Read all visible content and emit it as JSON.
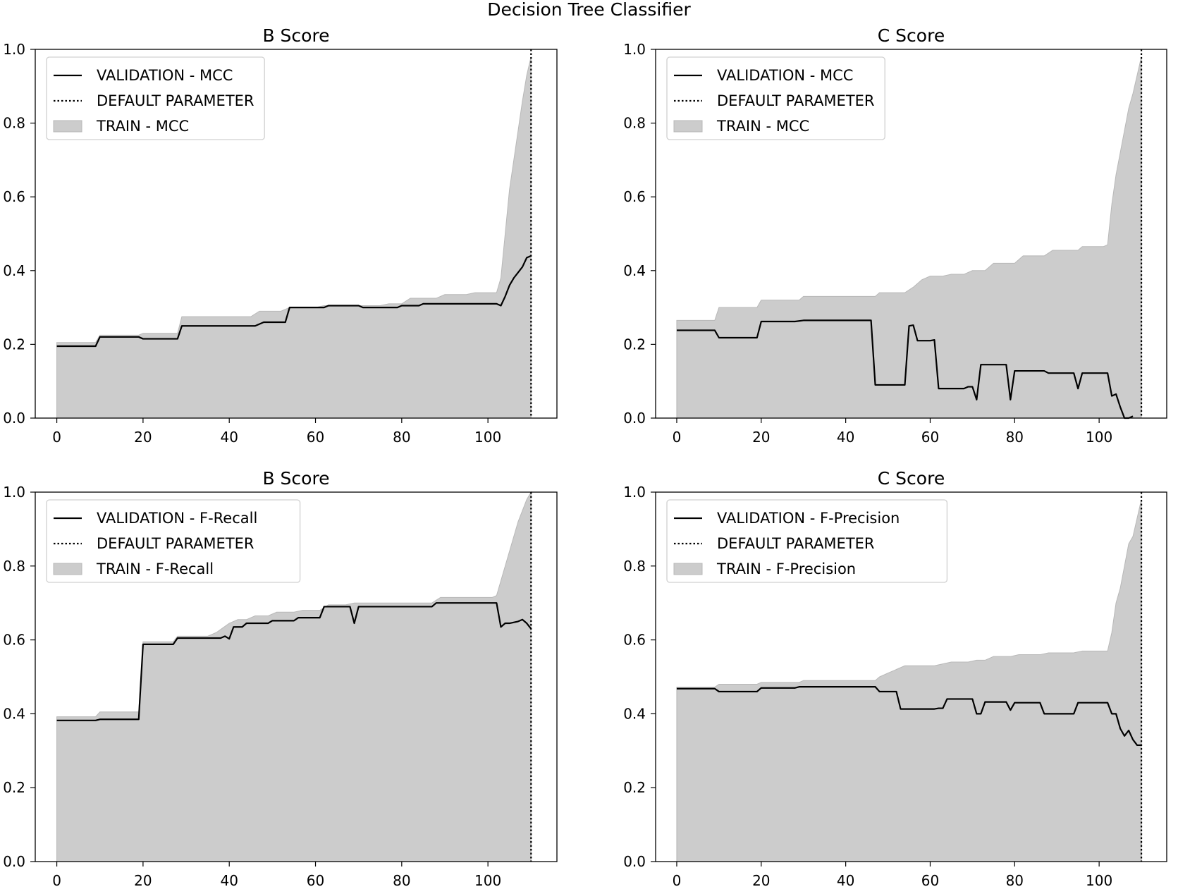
{
  "figure_title": "Decision Tree Classifier",
  "chart_data": [
    {
      "type": "line",
      "title": "B Score",
      "xlabel": "",
      "ylabel": "",
      "xlim": [
        -5,
        116
      ],
      "ylim": [
        0,
        1
      ],
      "xticks": [
        0,
        20,
        40,
        60,
        80,
        100
      ],
      "yticks": [
        0.0,
        0.2,
        0.4,
        0.6,
        0.8,
        1.0
      ],
      "xtick_labels": [
        "0",
        "20",
        "40",
        "60",
        "80",
        "100"
      ],
      "ytick_labels": [
        "0.0",
        "0.2",
        "0.4",
        "0.6",
        "0.8",
        "1.0"
      ],
      "default_parameter_x": 110,
      "legend": {
        "position": "top-left",
        "entries": [
          "VALIDATION - MCC",
          "DEFAULT PARAMETER",
          "TRAIN - MCC"
        ]
      },
      "series": [
        {
          "name": "VALIDATION - MCC",
          "style": "line",
          "x": [
            0,
            9,
            10,
            19,
            20,
            28,
            29,
            46,
            48,
            53,
            54,
            62,
            63,
            70,
            71,
            79,
            80,
            84,
            85,
            90,
            91,
            97,
            98,
            102,
            103,
            104,
            105,
            106,
            107,
            108,
            109,
            110
          ],
          "y": [
            0.195,
            0.195,
            0.22,
            0.22,
            0.215,
            0.215,
            0.25,
            0.25,
            0.26,
            0.26,
            0.3,
            0.3,
            0.305,
            0.305,
            0.3,
            0.3,
            0.305,
            0.305,
            0.31,
            0.31,
            0.31,
            0.31,
            0.31,
            0.31,
            0.305,
            0.33,
            0.36,
            0.38,
            0.395,
            0.41,
            0.435,
            0.44
          ]
        },
        {
          "name": "TRAIN - MCC",
          "style": "fill",
          "x": [
            0,
            9,
            10,
            19,
            20,
            28,
            29,
            45,
            47,
            52,
            54,
            60,
            62,
            75,
            77,
            80,
            82,
            88,
            90,
            95,
            97,
            102,
            103,
            104,
            105,
            106,
            107,
            108,
            109,
            110
          ],
          "y": [
            0.205,
            0.205,
            0.225,
            0.225,
            0.23,
            0.23,
            0.275,
            0.275,
            0.29,
            0.29,
            0.3,
            0.3,
            0.305,
            0.305,
            0.31,
            0.31,
            0.325,
            0.325,
            0.335,
            0.335,
            0.34,
            0.34,
            0.38,
            0.5,
            0.62,
            0.7,
            0.78,
            0.86,
            0.93,
            0.98
          ]
        }
      ]
    },
    {
      "type": "line",
      "title": "C Score",
      "xlabel": "",
      "ylabel": "",
      "xlim": [
        -5,
        116
      ],
      "ylim": [
        0,
        1
      ],
      "xticks": [
        0,
        20,
        40,
        60,
        80,
        100
      ],
      "yticks": [
        0.0,
        0.2,
        0.4,
        0.6,
        0.8,
        1.0
      ],
      "xtick_labels": [
        "0",
        "20",
        "40",
        "60",
        "80",
        "100"
      ],
      "ytick_labels": [
        "0.0",
        "0.2",
        "0.4",
        "0.6",
        "0.8",
        "1.0"
      ],
      "default_parameter_x": 110,
      "legend": {
        "position": "top-left",
        "entries": [
          "VALIDATION - MCC",
          "DEFAULT PARAMETER",
          "TRAIN - MCC"
        ]
      },
      "series": [
        {
          "name": "VALIDATION - MCC",
          "style": "line",
          "x": [
            0,
            9,
            10,
            19,
            20,
            28,
            30,
            46,
            47,
            54,
            55,
            56,
            57,
            60,
            61,
            62,
            63,
            68,
            69,
            70,
            71,
            72,
            73,
            78,
            79,
            80,
            81,
            87,
            88,
            94,
            95,
            96,
            102,
            103,
            104,
            105,
            106,
            107,
            108
          ],
          "y": [
            0.238,
            0.238,
            0.218,
            0.218,
            0.262,
            0.262,
            0.265,
            0.265,
            0.09,
            0.09,
            0.25,
            0.252,
            0.21,
            0.21,
            0.212,
            0.08,
            0.08,
            0.08,
            0.085,
            0.085,
            0.05,
            0.145,
            0.145,
            0.145,
            0.05,
            0.128,
            0.128,
            0.128,
            0.122,
            0.122,
            0.08,
            0.122,
            0.122,
            0.06,
            0.065,
            0.03,
            0.0,
            0.0,
            0.005
          ]
        },
        {
          "name": "TRAIN - MCC",
          "style": "fill",
          "x": [
            0,
            9,
            10,
            19,
            20,
            29,
            30,
            37,
            38,
            47,
            48,
            54,
            56,
            58,
            60,
            63,
            65,
            68,
            70,
            73,
            75,
            80,
            82,
            87,
            89,
            95,
            96,
            101,
            102,
            103,
            104,
            105,
            106,
            107,
            108,
            109,
            110
          ],
          "y": [
            0.265,
            0.265,
            0.3,
            0.3,
            0.32,
            0.32,
            0.33,
            0.33,
            0.33,
            0.33,
            0.34,
            0.34,
            0.355,
            0.375,
            0.385,
            0.385,
            0.39,
            0.39,
            0.4,
            0.4,
            0.42,
            0.42,
            0.44,
            0.44,
            0.455,
            0.455,
            0.465,
            0.465,
            0.47,
            0.58,
            0.66,
            0.72,
            0.78,
            0.84,
            0.88,
            0.93,
            0.98
          ]
        }
      ]
    },
    {
      "type": "line",
      "title": "B Score",
      "xlabel": "",
      "ylabel": "",
      "xlim": [
        -5,
        116
      ],
      "ylim": [
        0,
        1
      ],
      "xticks": [
        0,
        20,
        40,
        60,
        80,
        100
      ],
      "yticks": [
        0.0,
        0.2,
        0.4,
        0.6,
        0.8,
        1.0
      ],
      "xtick_labels": [
        "0",
        "20",
        "40",
        "60",
        "80",
        "100"
      ],
      "ytick_labels": [
        "0.0",
        "0.2",
        "0.4",
        "0.6",
        "0.8",
        "1.0"
      ],
      "default_parameter_x": 110,
      "legend": {
        "position": "top-left",
        "entries": [
          "VALIDATION - F-Recall",
          "DEFAULT PARAMETER",
          "TRAIN - F-Recall"
        ]
      },
      "series": [
        {
          "name": "VALIDATION - F-Recall",
          "style": "line",
          "x": [
            0,
            9,
            10,
            19,
            20,
            27,
            28,
            38,
            39,
            40,
            41,
            43,
            44,
            49,
            50,
            55,
            56,
            61,
            62,
            67,
            68,
            69,
            70,
            76,
            77,
            87,
            88,
            97,
            98,
            102,
            103,
            104,
            105,
            107,
            108,
            109,
            110
          ],
          "y": [
            0.382,
            0.382,
            0.385,
            0.385,
            0.588,
            0.588,
            0.605,
            0.605,
            0.61,
            0.603,
            0.635,
            0.635,
            0.645,
            0.645,
            0.652,
            0.652,
            0.66,
            0.66,
            0.69,
            0.69,
            0.69,
            0.645,
            0.69,
            0.69,
            0.69,
            0.69,
            0.7,
            0.7,
            0.7,
            0.7,
            0.635,
            0.645,
            0.645,
            0.65,
            0.655,
            0.645,
            0.63
          ]
        },
        {
          "name": "TRAIN - F-Recall",
          "style": "fill",
          "x": [
            0,
            9,
            10,
            19,
            20,
            27,
            28,
            35,
            37,
            40,
            42,
            44,
            46,
            49,
            51,
            55,
            57,
            61,
            63,
            67,
            69,
            87,
            89,
            101,
            102,
            103,
            104,
            105,
            106,
            107,
            108,
            109,
            110
          ],
          "y": [
            0.392,
            0.392,
            0.405,
            0.405,
            0.595,
            0.595,
            0.61,
            0.61,
            0.62,
            0.645,
            0.655,
            0.655,
            0.665,
            0.665,
            0.675,
            0.675,
            0.68,
            0.68,
            0.695,
            0.695,
            0.7,
            0.7,
            0.715,
            0.715,
            0.72,
            0.76,
            0.8,
            0.84,
            0.88,
            0.92,
            0.95,
            0.98,
            1.0
          ]
        }
      ]
    },
    {
      "type": "line",
      "title": "C Score",
      "xlabel": "",
      "ylabel": "",
      "xlim": [
        -5,
        116
      ],
      "ylim": [
        0,
        1
      ],
      "xticks": [
        0,
        20,
        40,
        60,
        80,
        100
      ],
      "yticks": [
        0.0,
        0.2,
        0.4,
        0.6,
        0.8,
        1.0
      ],
      "xtick_labels": [
        "0",
        "20",
        "40",
        "60",
        "80",
        "100"
      ],
      "ytick_labels": [
        "0.0",
        "0.2",
        "0.4",
        "0.6",
        "0.8",
        "1.0"
      ],
      "default_parameter_x": 110,
      "legend": {
        "position": "top-left",
        "entries": [
          "VALIDATION - F-Precision",
          "DEFAULT PARAMETER",
          "TRAIN - F-Precision"
        ]
      },
      "series": [
        {
          "name": "VALIDATION - F-Precision",
          "style": "line",
          "x": [
            0,
            9,
            10,
            19,
            20,
            28,
            29,
            47,
            48,
            52,
            53,
            61,
            62,
            63,
            64,
            70,
            71,
            72,
            73,
            78,
            79,
            80,
            81,
            86,
            87,
            94,
            95,
            101,
            102,
            103,
            104,
            105,
            106,
            107,
            108,
            109,
            110
          ],
          "y": [
            0.468,
            0.468,
            0.46,
            0.46,
            0.47,
            0.47,
            0.473,
            0.473,
            0.46,
            0.46,
            0.413,
            0.413,
            0.415,
            0.415,
            0.44,
            0.44,
            0.4,
            0.4,
            0.432,
            0.432,
            0.41,
            0.43,
            0.43,
            0.43,
            0.4,
            0.4,
            0.43,
            0.43,
            0.43,
            0.4,
            0.4,
            0.36,
            0.34,
            0.355,
            0.33,
            0.315,
            0.315
          ]
        },
        {
          "name": "TRAIN - F-Precision",
          "style": "fill",
          "x": [
            0,
            9,
            10,
            19,
            20,
            29,
            30,
            47,
            48,
            50,
            52,
            54,
            61,
            63,
            65,
            69,
            71,
            73,
            75,
            79,
            81,
            86,
            88,
            94,
            96,
            101,
            102,
            103,
            104,
            105,
            106,
            107,
            108,
            109,
            110
          ],
          "y": [
            0.472,
            0.472,
            0.48,
            0.48,
            0.485,
            0.485,
            0.49,
            0.49,
            0.5,
            0.51,
            0.52,
            0.53,
            0.53,
            0.535,
            0.54,
            0.54,
            0.545,
            0.545,
            0.555,
            0.555,
            0.56,
            0.56,
            0.565,
            0.565,
            0.57,
            0.57,
            0.57,
            0.62,
            0.7,
            0.74,
            0.8,
            0.86,
            0.88,
            0.93,
            0.98
          ]
        }
      ]
    }
  ]
}
